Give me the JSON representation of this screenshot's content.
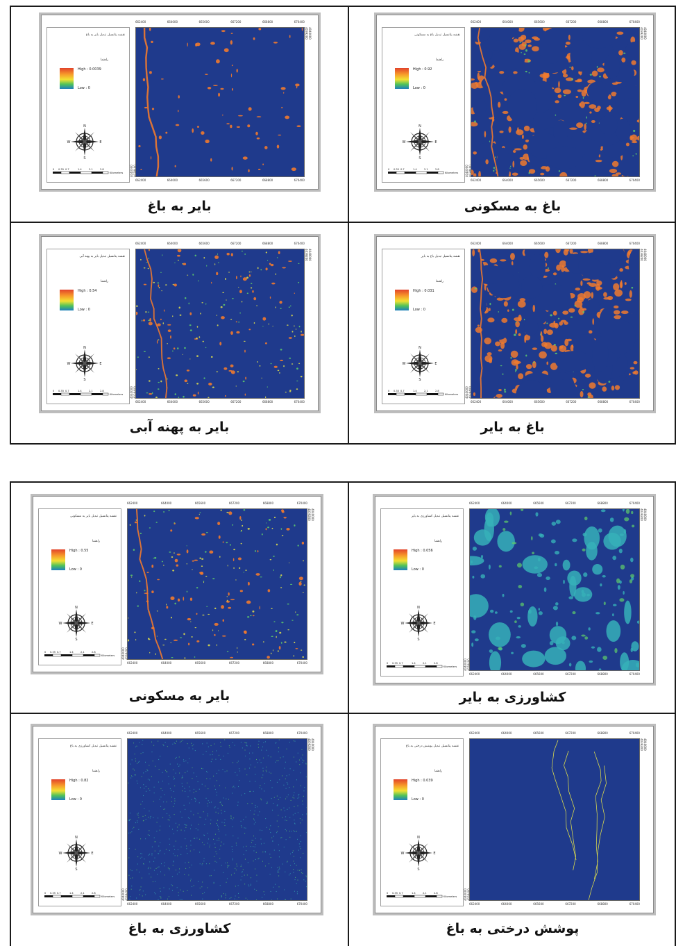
{
  "colors": {
    "map_background": "#1f3a8c",
    "orange": "#f07a2e",
    "green": "#5fcf6a",
    "cyan": "#36b0b8",
    "yellow": "#e3e24a"
  },
  "map_template": {
    "legend_head": "راهنما",
    "top_ticks": [
      "662400",
      "664000",
      "665600",
      "667200",
      "668800",
      "670400"
    ],
    "left_ticks": [
      "4040000",
      "4038400",
      "4036800",
      "4035200",
      "4033600"
    ],
    "right_ticks": [
      "4040000",
      "4039200",
      "4037600",
      "4036000",
      "4034400",
      "4032800"
    ],
    "scale_labels": [
      "0",
      "0.35",
      "0.7",
      "1.4",
      "2.1",
      "2.8",
      "Kilometers"
    ],
    "compass": {
      "n": "N",
      "s": "S",
      "e": "E",
      "w": "W"
    }
  },
  "groups": [
    {
      "panels": [
        {
          "caption": "باغ به مسکونی",
          "legend_title": "نقشه پتانسیل تبدیل باغ به مسکونی",
          "high": "High : 0.92",
          "low": "Low : 0",
          "pattern": "orange-dense"
        },
        {
          "caption": "بایر به باغ",
          "legend_title": "نقشه پتانسیل تبدیل بایر به باغ",
          "high": "High : 0.0039",
          "low": "Low : 0",
          "pattern": "orange-sparse"
        },
        {
          "caption": "باغ به بایر",
          "legend_title": "نقشه پتانسیل تبدیل باغ به بایر",
          "high": "High : 0.031",
          "low": "Low : 0",
          "pattern": "orange-dense"
        },
        {
          "caption": "بایر به پهنه آبی",
          "legend_title": "نقشه پتانسیل تبدیل بایر به پهنه آبی",
          "high": "High : 0.54",
          "low": "Low : 0",
          "pattern": "mixed-sparse"
        }
      ]
    },
    {
      "panels": [
        {
          "caption": "کشاورزی به بایر",
          "legend_title": "نقشه پتانسیل تبدیل کشاورزی به بایر",
          "high": "High : 0.056",
          "low": "Low : 0",
          "pattern": "cyan-patches"
        },
        {
          "caption": "بایر به مسکونی",
          "legend_title": "نقشه پتانسیل تبدیل بایر به مسکونی",
          "high": "High : 0.55",
          "low": "Low : 0",
          "pattern": "mixed-sparse"
        },
        {
          "caption": "پوشش درختی به باغ",
          "legend_title": "نقشه پتانسیل تبدیل پوشش درختی به باغ",
          "high": "High : 0.039",
          "low": "Low : 0",
          "pattern": "lines"
        },
        {
          "caption": "کشاورزی به باغ",
          "legend_title": "نقشه پتانسیل تبدیل کشاورزی به باغ",
          "high": "High : 0.82",
          "low": "Low : 0",
          "pattern": "speckle"
        }
      ]
    }
  ]
}
